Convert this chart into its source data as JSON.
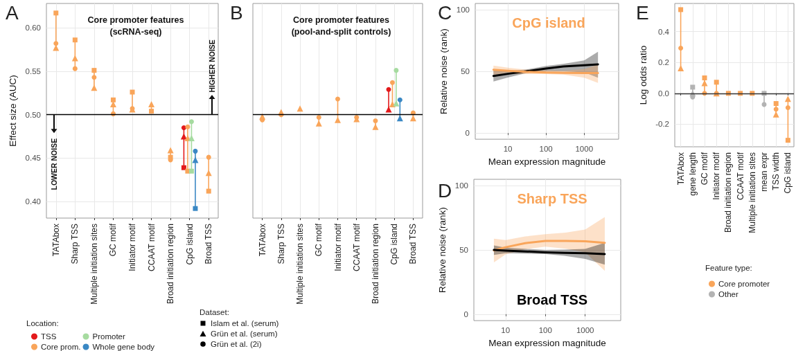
{
  "chart_data": [
    {
      "type": "scatter",
      "title": "Core promoter features\n(scRNA-seq)",
      "ylabel": "Effect size (AUC)",
      "legend_title": "Location:",
      "legend": "bottom left",
      "grid": true,
      "categories": [
        "TATAbox",
        "Sharp TSS",
        "Multiple initiation sites",
        "GC motif",
        "Initiator motif",
        "CCAAT motif",
        "Broad initiation region",
        "CpG island",
        "Broad TSS"
      ],
      "ylim": [
        0.381,
        0.628
      ],
      "yticks": [
        {
          "value": 0.4,
          "label": "0.40"
        },
        {
          "value": 0.45,
          "label": "0.45"
        },
        {
          "value": 0.5,
          "label": "0.50"
        },
        {
          "value": 0.55,
          "label": "0.55"
        },
        {
          "value": 0.6,
          "label": "0.60"
        }
      ],
      "ref_lines": [
        {
          "axis": "y",
          "value": 0.5,
          "color": "#000000"
        }
      ],
      "annotations": [
        "A",
        "LOWER NOISE",
        "HIGHER NOISE",
        "Dataset:",
        "Islam et al. (serum)",
        "Grün et al. (serum)",
        "Grün et al. (2i)"
      ],
      "series": [
        {
          "color": "#e31a1c",
          "marker": "square",
          "values": [
            null,
            null,
            null,
            null,
            null,
            null,
            null,
            0.439,
            null
          ]
        },
        {
          "color": "#e31a1c",
          "marker": "triangle",
          "values": [
            null,
            null,
            null,
            null,
            null,
            null,
            null,
            0.475,
            null
          ]
        },
        {
          "name": "TSS",
          "color": "#e31a1c",
          "marker": "circle",
          "values": [
            null,
            null,
            null,
            null,
            null,
            null,
            null,
            0.485,
            null
          ]
        },
        {
          "color": "#f9a55a",
          "marker": "square",
          "values": [
            0.617,
            0.586,
            0.551,
            0.517,
            0.526,
            0.504,
            0.451,
            0.435,
            0.412
          ]
        },
        {
          "color": "#f9a55a",
          "marker": "triangle",
          "values": [
            0.577,
            0.565,
            0.531,
            0.512,
            0.506,
            0.512,
            0.459,
            0.473,
            0.433
          ]
        },
        {
          "name": "Core prom.",
          "color": "#f9a55a",
          "marker": "circle",
          "values": [
            0.582,
            0.553,
            0.543,
            0.501,
            0.507,
            null,
            0.448,
            0.486,
            0.451
          ]
        },
        {
          "color": "#a6dba0",
          "marker": "square",
          "values": [
            null,
            null,
            null,
            null,
            null,
            null,
            null,
            0.435,
            null
          ]
        },
        {
          "color": "#a6dba0",
          "marker": "triangle",
          "values": [
            null,
            null,
            null,
            null,
            null,
            null,
            null,
            0.473,
            null
          ]
        },
        {
          "name": "Promoter",
          "color": "#a6dba0",
          "marker": "circle",
          "values": [
            null,
            null,
            null,
            null,
            null,
            null,
            null,
            0.492,
            null
          ]
        },
        {
          "color": "#3a88c4",
          "marker": "square",
          "values": [
            null,
            null,
            null,
            null,
            null,
            null,
            null,
            0.392,
            null
          ]
        },
        {
          "color": "#3a88c4",
          "marker": "triangle",
          "values": [
            null,
            null,
            null,
            null,
            null,
            null,
            null,
            0.448,
            null
          ]
        },
        {
          "name": "Whole gene body",
          "color": "#3a88c4",
          "marker": "circle",
          "values": [
            null,
            null,
            null,
            null,
            null,
            null,
            null,
            0.458,
            null
          ]
        }
      ]
    },
    {
      "type": "scatter",
      "title": "Core promoter features\n(pool-and-split controls)",
      "grid": true,
      "tick_labels": "x",
      "categories": [
        "TATAbox",
        "Sharp TSS",
        "Multiple initiation sites",
        "GC motif",
        "Initiator motif",
        "CCAAT motif",
        "Broad initiation region",
        "CpG island",
        "Broad TSS"
      ],
      "ylim": [
        0.381,
        0.628
      ],
      "ref_lines": [
        {
          "axis": "y",
          "value": 0.5,
          "color": "#000000"
        }
      ],
      "annotations": [
        "B"
      ],
      "series": [
        {
          "color": "#e31a1c",
          "marker": "triangle",
          "values": [
            null,
            null,
            null,
            null,
            null,
            null,
            null,
            0.506,
            null
          ]
        },
        {
          "color": "#e31a1c",
          "marker": "circle",
          "values": [
            null,
            null,
            null,
            null,
            null,
            null,
            null,
            0.529,
            null
          ]
        },
        {
          "color": "#f9a55a",
          "marker": "circle",
          "values": [
            0.494,
            0.5,
            null,
            0.497,
            0.518,
            0.497,
            0.493,
            0.537,
            0.502
          ]
        },
        {
          "color": "#f9a55a",
          "marker": "triangle",
          "values": [
            0.498,
            0.503,
            0.507,
            0.49,
            0.494,
            0.495,
            0.486,
            0.512,
            0.496
          ]
        },
        {
          "color": "#a6dba0",
          "marker": "triangle",
          "values": [
            null,
            null,
            null,
            null,
            null,
            null,
            null,
            0.513,
            null
          ]
        },
        {
          "color": "#a6dba0",
          "marker": "circle",
          "values": [
            null,
            null,
            null,
            null,
            null,
            null,
            null,
            0.551,
            null
          ]
        },
        {
          "color": "#3a88c4",
          "marker": "triangle",
          "values": [
            null,
            null,
            null,
            null,
            null,
            null,
            null,
            0.496,
            null
          ]
        },
        {
          "color": "#3a88c4",
          "marker": "circle",
          "values": [
            null,
            null,
            null,
            null,
            null,
            null,
            null,
            0.517,
            null
          ]
        }
      ]
    },
    {
      "type": "line",
      "xlabel": "Mean expression magnitude",
      "ylabel": "Relative noise (rank)",
      "log": "x",
      "grid": true,
      "marker": "none",
      "xlim": [
        1.4,
        8000
      ],
      "xticks": [
        10,
        100,
        1000
      ],
      "ylim": [
        -5,
        105
      ],
      "yticks": [
        0,
        50,
        100
      ],
      "annotations": [
        "C"
      ],
      "series": [
        {
          "color": "#000000",
          "x": [
            4.2,
            10,
            30,
            100,
            284,
            1000,
            2300
          ],
          "values": [
            46.3,
            48,
            50,
            52.3,
            54,
            55,
            55.7
          ],
          "lower": [
            41.7,
            45,
            48.5,
            50,
            50,
            49.2,
            44.8
          ],
          "upper": [
            50.9,
            50.5,
            51.5,
            54.4,
            56,
            58.8,
            65.9
          ]
        },
        {
          "name": "CpG island",
          "color": "#f9a55a",
          "x": [
            4.2,
            10,
            30,
            100,
            284,
            1000,
            2300
          ],
          "values": [
            51.3,
            50.5,
            49.6,
            49,
            48.8,
            48.6,
            48.6
          ],
          "lower": [
            47.4,
            47.8,
            47.8,
            47.8,
            47.4,
            44.8,
            40.7
          ],
          "upper": [
            54.7,
            53,
            51.5,
            50.9,
            50.5,
            51.8,
            55.3
          ]
        }
      ]
    },
    {
      "type": "line",
      "xlabel": "Mean expression magnitude",
      "ylabel": "Relative noise (rank)",
      "log": "x",
      "grid": true,
      "marker": "none",
      "xlim": [
        1.6,
        7800
      ],
      "xticks": [
        10,
        100,
        1000
      ],
      "ylim": [
        -5,
        105
      ],
      "yticks": [
        0,
        50,
        100
      ],
      "annotations": [
        "D"
      ],
      "series": [
        {
          "name": "Sharp TSS",
          "color": "#f9a55a",
          "x": [
            5.1,
            10,
            31,
            100,
            324,
            1000,
            3100
          ],
          "values": [
            49.6,
            52.1,
            55.3,
            57,
            57,
            56.7,
            55.6
          ],
          "lower": [
            40.3,
            46.5,
            50.5,
            52.6,
            51,
            48.2,
            33.7
          ],
          "upper": [
            58.8,
            57.7,
            60.5,
            62.3,
            63.5,
            65.9,
            75.6
          ]
        },
        {
          "name": "Broad TSS",
          "color": "#000000",
          "x": [
            5.1,
            10,
            100,
            300,
            1000,
            3100
          ],
          "values": [
            50,
            49.5,
            48.2,
            47.7,
            47.4,
            46.8
          ],
          "lower": [
            46.1,
            47.4,
            46.8,
            45.5,
            43,
            38.6
          ],
          "upper": [
            53.5,
            51.8,
            50,
            50.3,
            50.9,
            55.6
          ]
        }
      ]
    },
    {
      "type": "scatter",
      "ylabel": "Log odds ratio",
      "legend_title": "Feature type:",
      "legend": "bottom",
      "grid": true,
      "categories": [
        "TATAbox",
        "gene length",
        "GC motif",
        "Initiator motif",
        "Broad initiation region",
        "CCAAT motif",
        "Multiple initiation sites",
        "mean expr",
        "TSS width",
        "CpG island"
      ],
      "ylim": [
        -0.346,
        0.582
      ],
      "yticks": [
        -0.2,
        {
          "value": 0,
          "label": "0.0"
        },
        0.2,
        0.4
      ],
      "ref_lines": [
        {
          "axis": "y",
          "value": 0,
          "color": "#333333"
        }
      ],
      "annotations": [
        "E"
      ],
      "series": [
        {
          "color": "#f9a55a",
          "marker": "square",
          "values": [
            0.542,
            null,
            0.1,
            0.072,
            0,
            0,
            0,
            null,
            -0.066,
            -0.304
          ]
        },
        {
          "color": "#f9a55a",
          "marker": "triangle",
          "values": [
            0.163,
            null,
            0.066,
            0,
            null,
            null,
            null,
            null,
            -0.136,
            -0.036
          ]
        },
        {
          "name": "Core promoter",
          "color": "#f9a55a",
          "marker": "circle",
          "values": [
            0.293,
            null,
            0,
            0,
            null,
            null,
            null,
            null,
            -0.103,
            -0.093
          ]
        },
        {
          "color": "#b3b3b3",
          "marker": "square",
          "values": [
            null,
            0.04,
            null,
            null,
            null,
            null,
            null,
            0,
            null,
            null
          ]
        },
        {
          "color": "#b3b3b3",
          "marker": "triangle",
          "values": [
            null,
            0,
            null,
            null,
            null,
            null,
            null,
            null,
            null,
            null
          ]
        },
        {
          "name": "Other",
          "color": "#b3b3b3",
          "marker": "circle",
          "values": [
            null,
            -0.024,
            null,
            null,
            null,
            null,
            null,
            -0.072,
            null,
            null
          ]
        }
      ]
    }
  ]
}
